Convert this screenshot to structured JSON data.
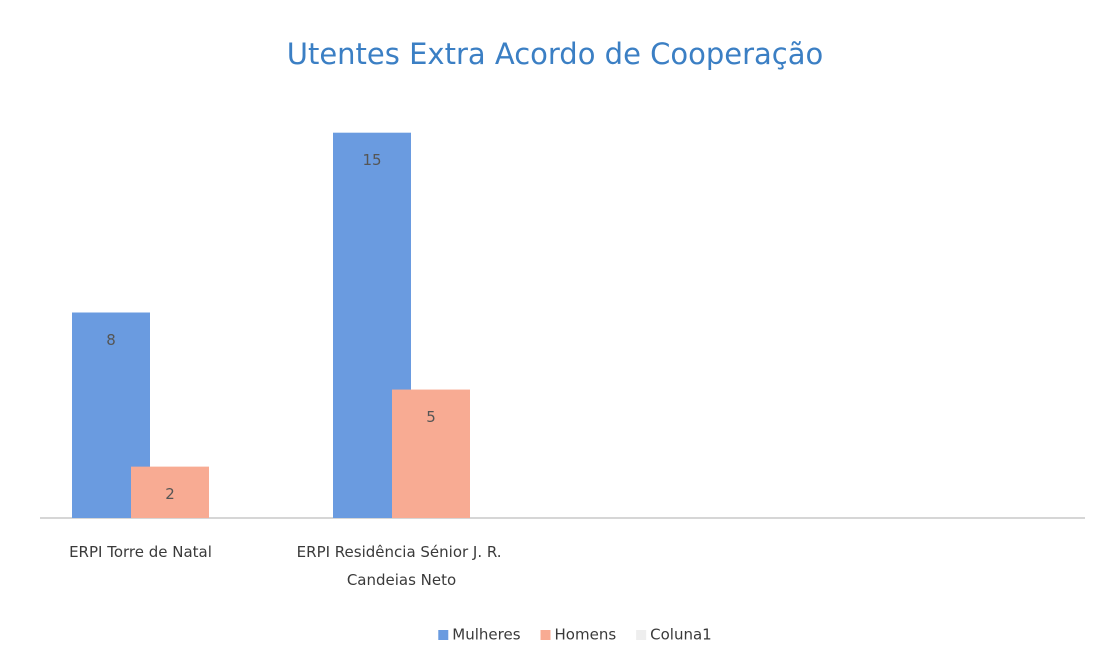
{
  "chart_data": {
    "type": "bar",
    "title": "Utentes Extra Acordo de Cooperação",
    "categories": [
      "ERPI Torre de Natal",
      "ERPI Residência Sénior J. R. Candeias Neto",
      null,
      null
    ],
    "series": [
      {
        "name": "Mulheres",
        "color": "#6a9be0",
        "values": [
          8,
          15,
          null,
          null
        ]
      },
      {
        "name": "Homens",
        "color": "#f8ab93",
        "values": [
          2,
          5,
          null,
          null
        ]
      },
      {
        "name": "Coluna1",
        "color": "#eeeeee",
        "values": [
          null,
          null,
          null,
          null
        ]
      }
    ],
    "ylim": [
      0,
      16
    ],
    "legend": "bottom"
  }
}
